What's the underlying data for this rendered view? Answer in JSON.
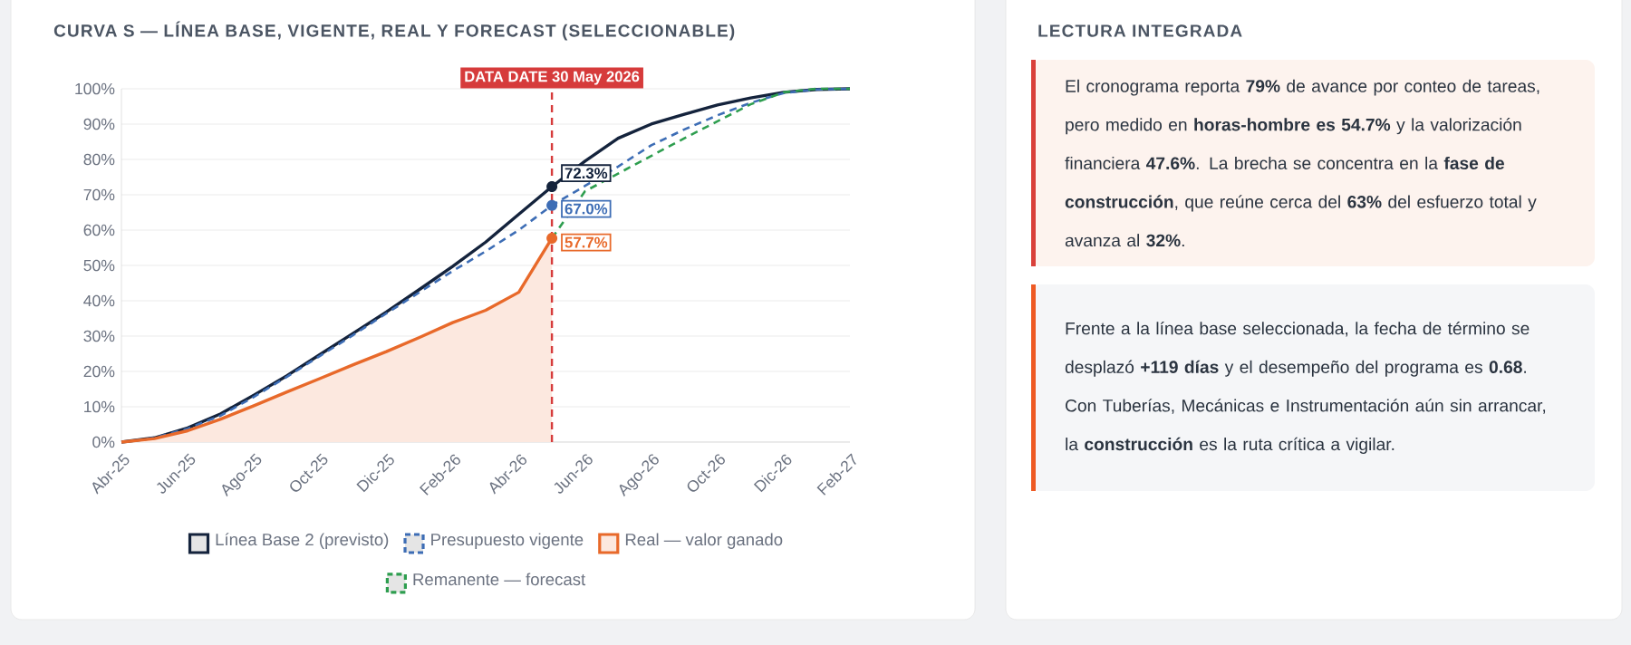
{
  "chart_data": [
    {
      "type": "line",
      "title": "CURVA S — LÍNEA BASE, VIGENTE, REAL Y FORECAST (SELECCIONABLE)",
      "x": [
        "2025-04",
        "2025-05",
        "2025-06",
        "2025-07",
        "2025-08",
        "2025-09",
        "2025-10",
        "2025-11",
        "2025-12",
        "2026-01",
        "2026-02",
        "2026-03",
        "2026-04",
        "2026-05",
        "2026-06",
        "2026-07",
        "2026-08",
        "2026-09",
        "2026-10",
        "2026-11",
        "2026-12",
        "2027-01",
        "2027-02"
      ],
      "series": [
        {
          "name": "Línea Base 2 (previsto)",
          "color": "#14233c",
          "line_style": "solid",
          "values": [
            0,
            1.2,
            4,
            8,
            13.3,
            18.8,
            24.8,
            30.8,
            36.8,
            43.2,
            49.7,
            56.6,
            64.5,
            72.3,
            79.5,
            86,
            90,
            92.8,
            95.4,
            97.4,
            99,
            99.8,
            100
          ],
          "value_labels": [
            null,
            null,
            null,
            null,
            null,
            null,
            null,
            null,
            null,
            null,
            null,
            null,
            null,
            "72.3%",
            null,
            null,
            null,
            null,
            null,
            null,
            null,
            null,
            null
          ]
        },
        {
          "name": "Presupuesto vigente",
          "color": "#3d6db5",
          "line_style": "dashed",
          "values": [
            0,
            1.2,
            3.8,
            7.5,
            12.8,
            18.5,
            24.4,
            30.3,
            36.4,
            42.4,
            48.4,
            54,
            60,
            67.0,
            72.5,
            78,
            84,
            88.5,
            92.5,
            96,
            98.8,
            99.8,
            100
          ],
          "value_labels": [
            null,
            null,
            null,
            null,
            null,
            null,
            null,
            null,
            null,
            null,
            null,
            null,
            null,
            "67.0%",
            null,
            null,
            null,
            null,
            null,
            null,
            null,
            null,
            null
          ]
        },
        {
          "name": "Real — valor ganado",
          "color": "#e8692a",
          "type": "area",
          "line_style": "solid",
          "values": [
            0,
            1,
            3.2,
            6.5,
            10.3,
            14.2,
            18,
            21.9,
            25.6,
            29.6,
            33.8,
            37.3,
            42.4,
            57.7,
            null,
            null,
            null,
            null,
            null,
            null,
            null,
            null,
            null
          ],
          "value_labels": [
            null,
            null,
            null,
            null,
            null,
            null,
            null,
            null,
            null,
            null,
            null,
            null,
            null,
            "57.7%",
            null,
            null,
            null,
            null,
            null,
            null,
            null,
            null,
            null
          ]
        },
        {
          "name": "Remanente — forecast",
          "color": "#2e9e4f",
          "line_style": "dashed",
          "values": [
            null,
            null,
            null,
            null,
            null,
            null,
            null,
            null,
            null,
            null,
            null,
            null,
            null,
            57.7,
            71,
            76,
            81,
            86,
            90.8,
            95.6,
            99,
            100,
            100
          ]
        }
      ],
      "xlim": [
        "2025-04",
        "2027-02"
      ],
      "xticks": [
        {
          "value": "2025-04",
          "label": "Abr-25"
        },
        {
          "value": "2025-06",
          "label": "Jun-25"
        },
        {
          "value": "2025-08",
          "label": "Ago-25"
        },
        {
          "value": "2025-10",
          "label": "Oct-25"
        },
        {
          "value": "2025-12",
          "label": "Dic-25"
        },
        {
          "value": "2026-02",
          "label": "Feb-26"
        },
        {
          "value": "2026-04",
          "label": "Abr-26"
        },
        {
          "value": "2026-06",
          "label": "Jun-26"
        },
        {
          "value": "2026-08",
          "label": "Ago-26"
        },
        {
          "value": "2026-10",
          "label": "Oct-26"
        },
        {
          "value": "2026-12",
          "label": "Dic-26"
        },
        {
          "value": "2027-02",
          "label": "Feb-27"
        }
      ],
      "ylim": [
        0,
        100
      ],
      "yticks": [
        {
          "value": 0,
          "label": "0%"
        },
        {
          "value": 10,
          "label": "10%"
        },
        {
          "value": 20,
          "label": "20%"
        },
        {
          "value": 30,
          "label": "30%"
        },
        {
          "value": 40,
          "label": "40%"
        },
        {
          "value": 50,
          "label": "50%"
        },
        {
          "value": 60,
          "label": "60%"
        },
        {
          "value": 70,
          "label": "70%"
        },
        {
          "value": 80,
          "label": "80%"
        },
        {
          "value": 90,
          "label": "90%"
        },
        {
          "value": 100,
          "label": "100%"
        }
      ],
      "grid": "y",
      "legend": "bottom",
      "ref_lines": [
        {
          "axis": "x",
          "value": "2026-05",
          "label": "DATA DATE 30 May 2026",
          "color": "#d63b3b",
          "line_style": "dashed"
        }
      ]
    },
    {
      "type": "other",
      "title": "LECTURA INTEGRADA",
      "annotations": [
        "El cronograma reporta **79%** de avance por conteo de tareas, pero medido en **horas-hombre es 54.7%** y la valorización financiera **47.6%**. La brecha se concentra en la **fase de construcción**, que reúne cerca del **63%** del esfuerzo total y avanza al **32%**.",
        "Frente a la línea base seleccionada, la fecha de término se desplazó **+119 días** y el desempeño del programa es **0.68**. Con Tuberías, Mecánicas e Instrumentación aún sin arrancar, la **construcción** es la ruta crítica a vigilar."
      ]
    }
  ]
}
